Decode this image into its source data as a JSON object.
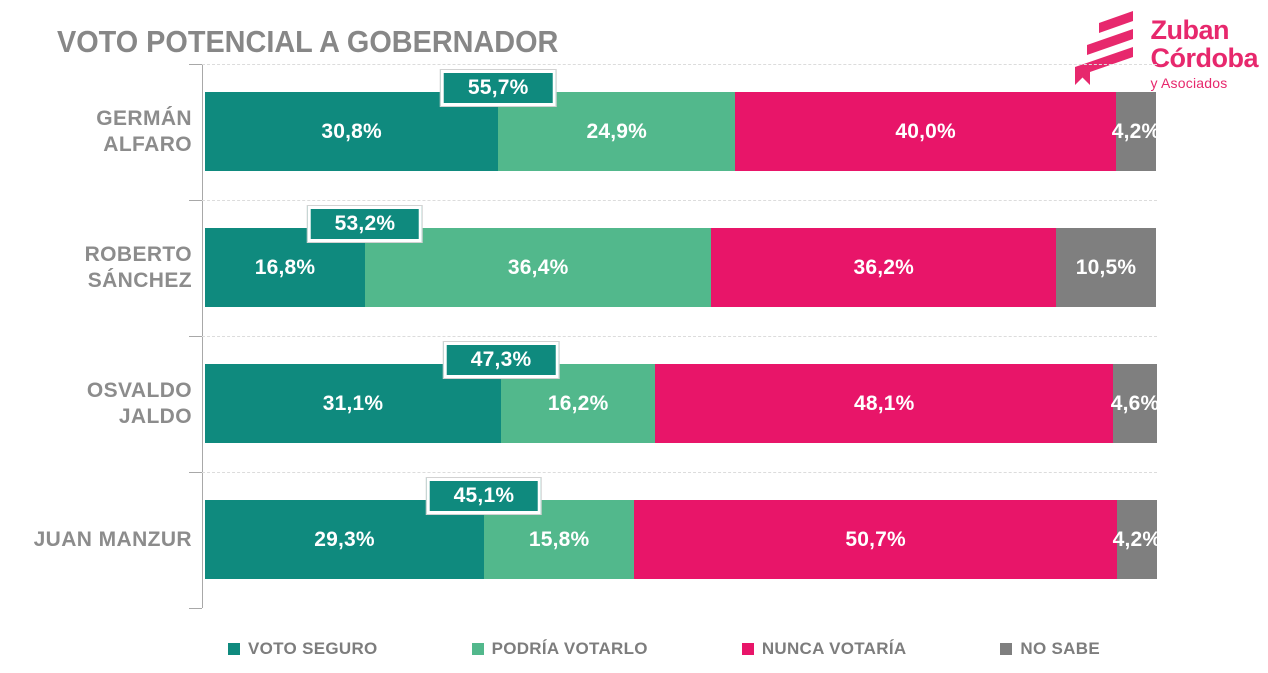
{
  "title": "VOTO POTENCIAL A GOBERNADOR",
  "logo": {
    "name": "Zuban Córdoba y Asociados",
    "line1": "Zuban",
    "line2": "Córdoba",
    "line3": "y Asociados",
    "color": "#E7286D"
  },
  "colors": {
    "voto_seguro": "#0F8A7E",
    "podria_votarlo": "#52B88C",
    "nunca_votaria": "#E81569",
    "no_sabe": "#7F7F7F",
    "title_gray": "#878787",
    "label_gray": "#8C8C8C",
    "legend_gray": "#7D7D7D",
    "axis_gray": "#A8A8A8",
    "callout_bg": "#0F8A7E"
  },
  "chart_data": {
    "type": "bar",
    "orientation": "horizontal",
    "stacked": true,
    "title": "VOTO POTENCIAL A GOBERNADOR",
    "xlim": [
      0,
      100
    ],
    "unit": "%",
    "decimal_separator": ",",
    "grid": "dashed row separators",
    "legend_position": "bottom",
    "categories": [
      "GERMÁN ALFARO",
      "ROBERTO SÁNCHEZ",
      "OSVALDO JALDO",
      "JUAN MANZUR"
    ],
    "category_label_lines": [
      [
        "GERMÁN",
        "ALFARO"
      ],
      [
        "ROBERTO",
        "SÁNCHEZ"
      ],
      [
        "OSVALDO",
        "JALDO"
      ],
      [
        "JUAN MANZUR"
      ]
    ],
    "series": [
      {
        "name": "VOTO SEGURO",
        "slug": "voto-seguro",
        "color": "#0F8A7E",
        "values": [
          30.8,
          16.8,
          31.1,
          29.3
        ],
        "labels": [
          "30,8%",
          "16,8%",
          "31,1%",
          "29,3%"
        ]
      },
      {
        "name": "PODRÍA VOTARLO",
        "slug": "podria-votarlo",
        "color": "#52B88C",
        "values": [
          24.9,
          36.4,
          16.2,
          15.8
        ],
        "labels": [
          "24,9%",
          "36,4%",
          "16,2%",
          "15,8%"
        ]
      },
      {
        "name": "NUNCA VOTARÍA",
        "slug": "nunca-votaria",
        "color": "#E81569",
        "values": [
          40.0,
          36.2,
          48.1,
          50.7
        ],
        "labels": [
          "40,0%",
          "36,2%",
          "48,1%",
          "50,7%"
        ]
      },
      {
        "name": "NO SABE",
        "slug": "no-sabe",
        "color": "#7F7F7F",
        "values": [
          4.2,
          10.5,
          4.6,
          4.2
        ],
        "labels": [
          "4,2%",
          "10,5%",
          "4,6%",
          "4,2%"
        ]
      }
    ],
    "callouts": {
      "description": "VOTO SEGURO + PODRÍA VOTARLO",
      "values": [
        55.7,
        53.2,
        47.3,
        45.1
      ],
      "labels": [
        "55,7%",
        "53,2%",
        "47,3%",
        "45,1%"
      ]
    }
  },
  "legend": {
    "items": [
      {
        "label": "VOTO SEGURO",
        "slug": "voto-seguro",
        "color": "#0F8A7E"
      },
      {
        "label": "PODRÍA VOTARLO",
        "slug": "podria-votarlo",
        "color": "#52B88C"
      },
      {
        "label": "NUNCA VOTARÍA",
        "slug": "nunca-votaria",
        "color": "#E81569"
      },
      {
        "label": "NO SABE",
        "slug": "no-sabe",
        "color": "#7F7F7F"
      }
    ]
  }
}
